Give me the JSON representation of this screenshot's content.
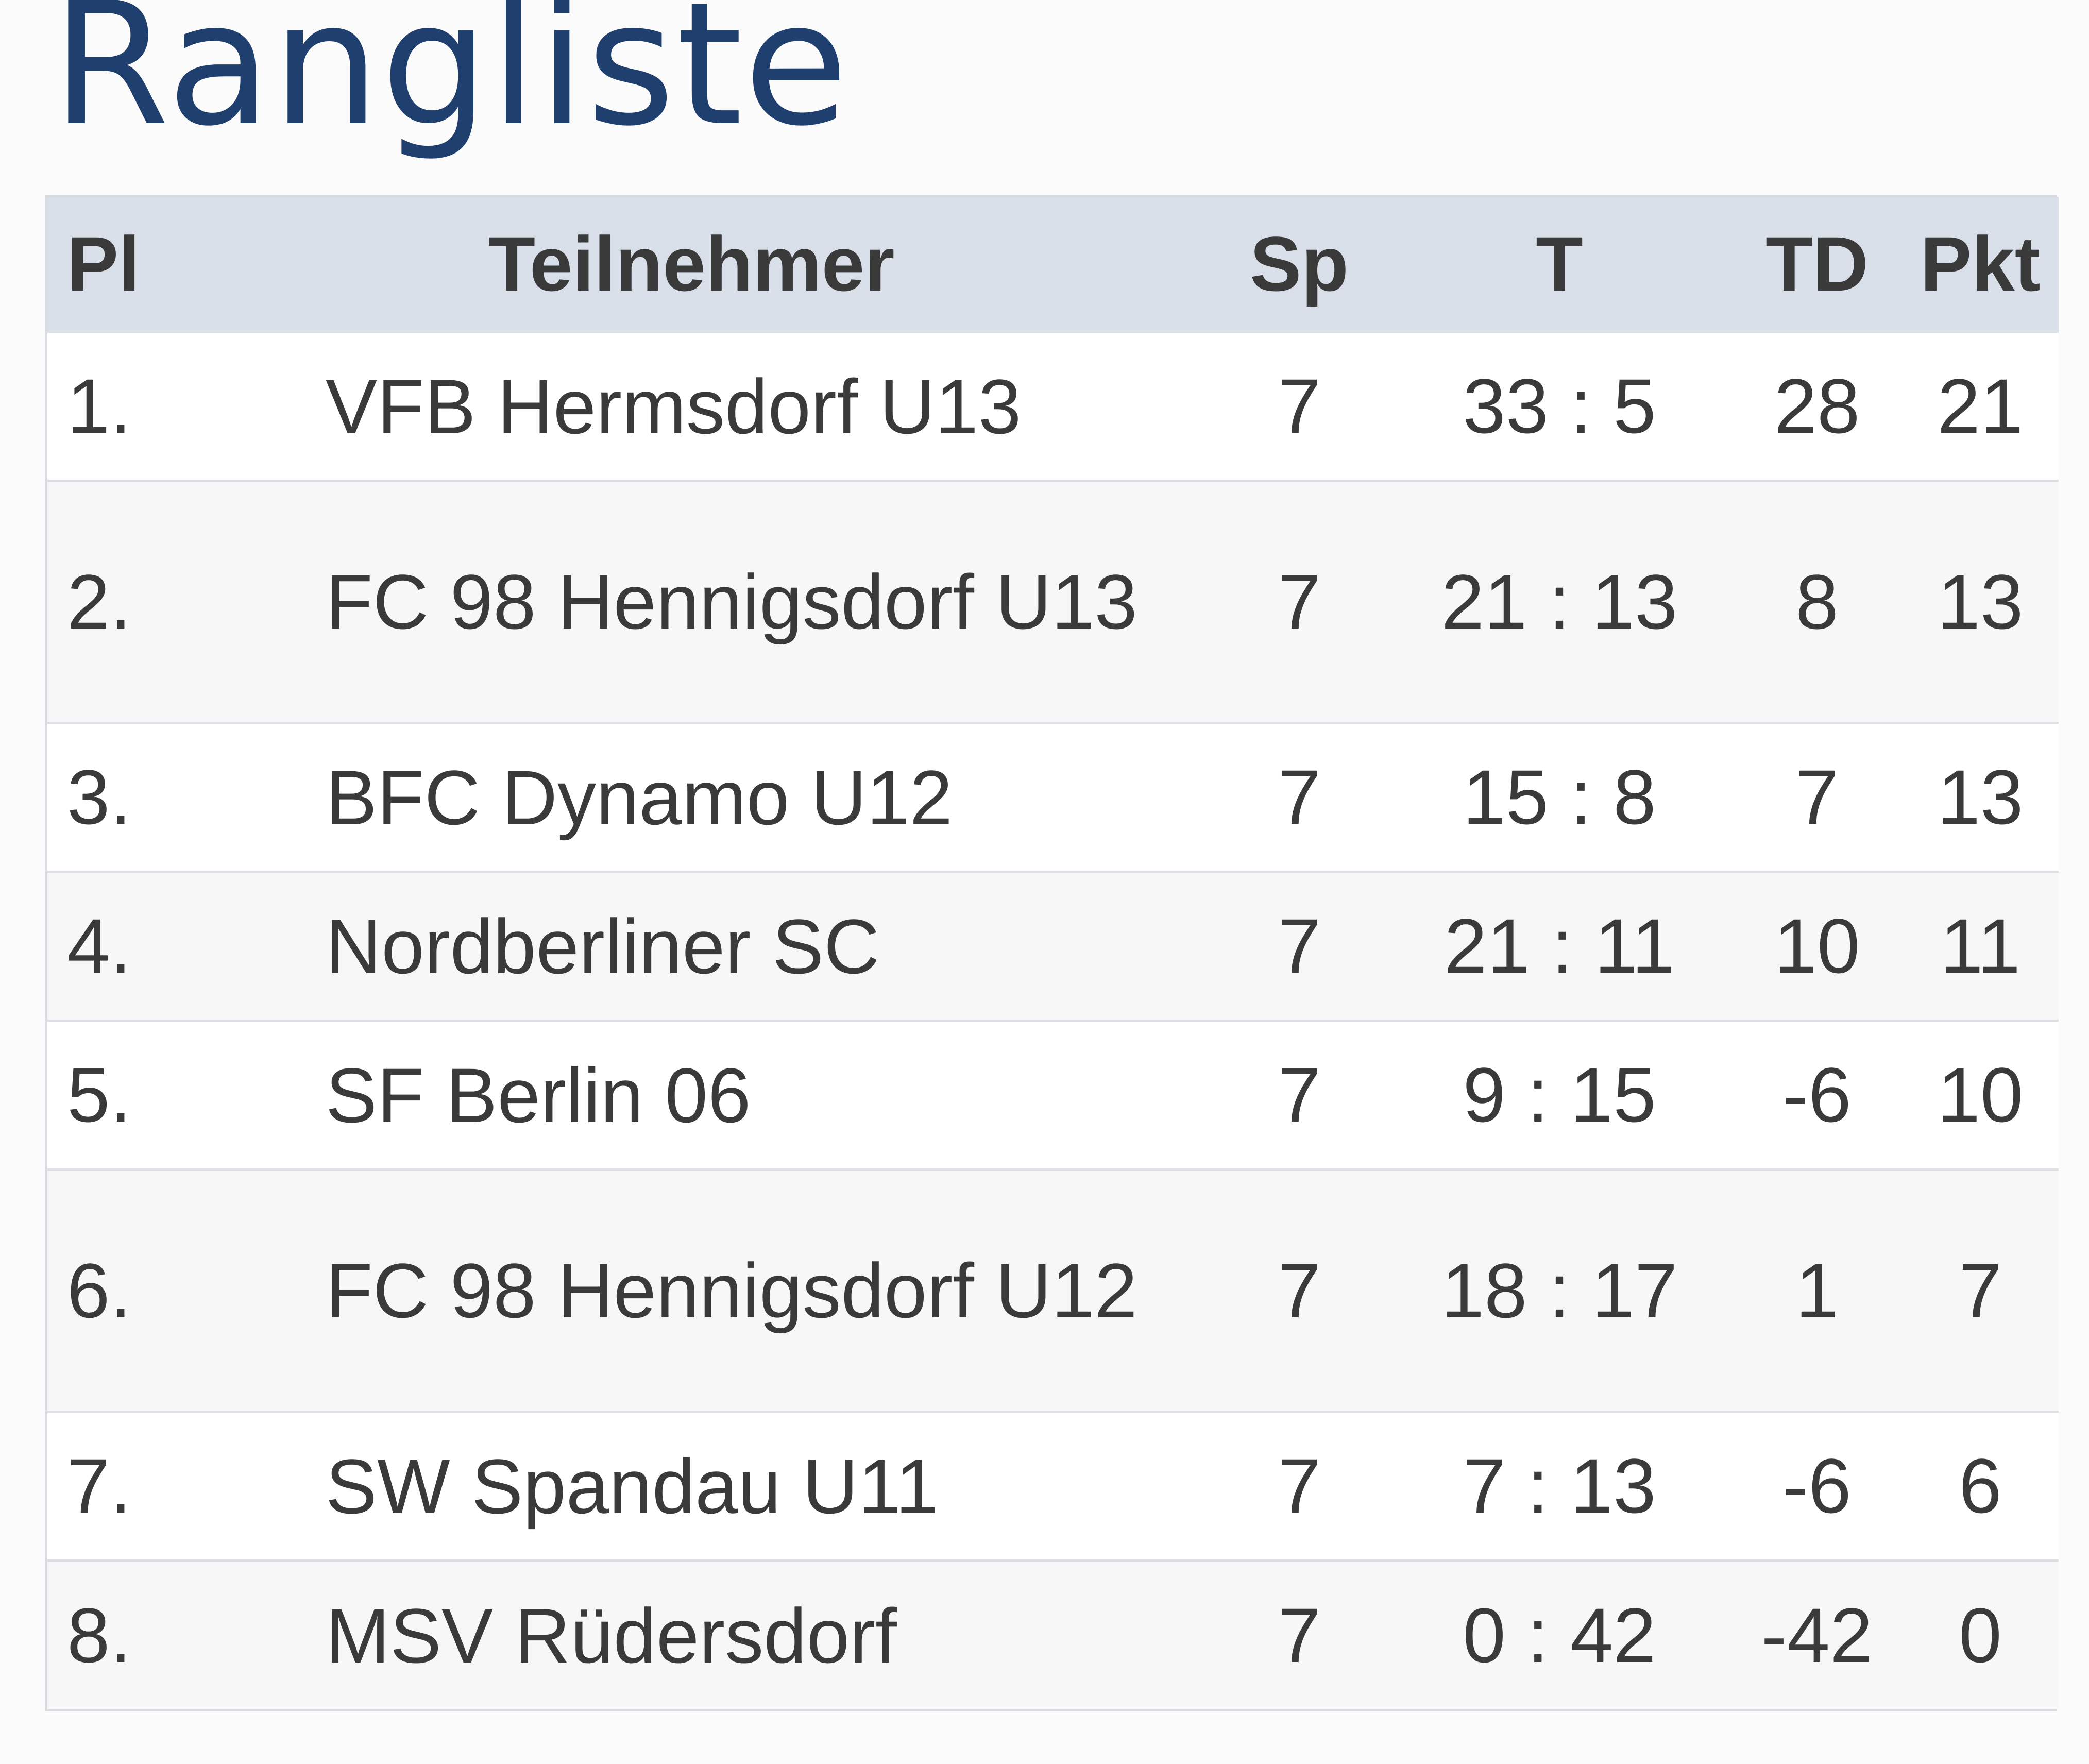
{
  "page": {
    "title": "Rangliste"
  },
  "table": {
    "headers": {
      "pl": "Pl",
      "team": "Teilnehmer",
      "sp": "Sp",
      "t": "T",
      "td": "TD",
      "pkt": "Pkt"
    },
    "rows": [
      {
        "pl": "1.",
        "team": "VFB Hermsdorf U13",
        "sp": "7",
        "t": "33 : 5",
        "td": "28",
        "pkt": "21"
      },
      {
        "pl": "2.",
        "team": "FC 98 Hennigsdorf U13",
        "sp": "7",
        "t": "21 : 13",
        "td": "8",
        "pkt": "13"
      },
      {
        "pl": "3.",
        "team": "BFC Dynamo U12",
        "sp": "7",
        "t": "15 : 8",
        "td": "7",
        "pkt": "13"
      },
      {
        "pl": "4.",
        "team": "Nordberliner SC",
        "sp": "7",
        "t": "21 : 11",
        "td": "10",
        "pkt": "11"
      },
      {
        "pl": "5.",
        "team": "SF Berlin 06",
        "sp": "7",
        "t": "9 : 15",
        "td": "-6",
        "pkt": "10"
      },
      {
        "pl": "6.",
        "team": "FC 98 Hennigsdorf U12",
        "sp": "7",
        "t": "18 : 17",
        "td": "1",
        "pkt": "7"
      },
      {
        "pl": "7.",
        "team": "SW Spandau U11",
        "sp": "7",
        "t": "7 : 13",
        "td": "-6",
        "pkt": "6"
      },
      {
        "pl": "8.",
        "team": "MSV Rüdersdorf",
        "sp": "7",
        "t": "0 : 42",
        "td": "-42",
        "pkt": "0"
      }
    ]
  },
  "colors": {
    "title": "#1f3f6e",
    "header_bg": "#d8dfe9",
    "text": "#3a3a3a",
    "border": "#dcdfe3"
  }
}
